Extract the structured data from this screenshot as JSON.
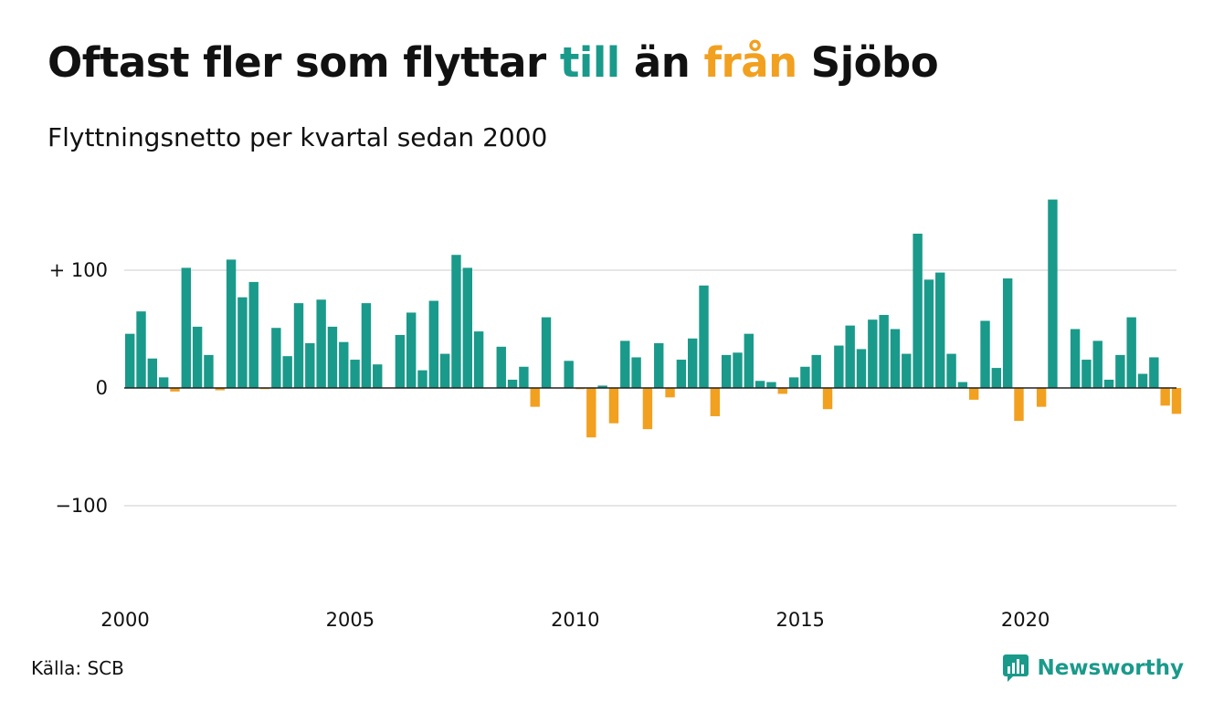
{
  "title": {
    "part1": "Oftast fler som flyttar ",
    "up_word": "till",
    "part2": " än ",
    "down_word": "från",
    "part3": " Sjöbo"
  },
  "subtitle": "Flyttningsnetto per kvartal sedan 2000",
  "source": "Källa: SCB",
  "brand": "Newsworthy",
  "colors": {
    "positive": "#1a9a8a",
    "negative": "#f2a01f",
    "grid": "#dddddd",
    "zero_line": "#222222"
  },
  "chart_data": {
    "type": "bar",
    "x_start": "2000 Q1",
    "x_step": "quarter",
    "x_ticks": [
      "2000",
      "2005",
      "2010",
      "2015",
      "2020"
    ],
    "y_ticks": [
      {
        "value": 100,
        "label": "+ 100"
      },
      {
        "value": 0,
        "label": "0"
      },
      {
        "value": -100,
        "label": "−100"
      }
    ],
    "ylim": [
      -160,
      160
    ],
    "grid": true,
    "values": [
      46,
      65,
      25,
      9,
      -3,
      102,
      52,
      28,
      -2,
      109,
      77,
      90,
      -1,
      51,
      27,
      72,
      38,
      75,
      52,
      39,
      24,
      72,
      20,
      0,
      45,
      64,
      15,
      74,
      29,
      113,
      102,
      48,
      0,
      35,
      7,
      18,
      -16,
      60,
      0,
      23,
      -1,
      -42,
      2,
      -30,
      40,
      26,
      -35,
      38,
      -8,
      24,
      42,
      87,
      -24,
      28,
      30,
      46,
      6,
      5,
      -5,
      9,
      18,
      28,
      -18,
      36,
      53,
      33,
      58,
      62,
      50,
      29,
      131,
      92,
      98,
      29,
      5,
      -10,
      57,
      17,
      93,
      -28,
      0,
      -16,
      160,
      0,
      50,
      24,
      40,
      7,
      28,
      60,
      12,
      26,
      -15,
      -22
    ]
  }
}
